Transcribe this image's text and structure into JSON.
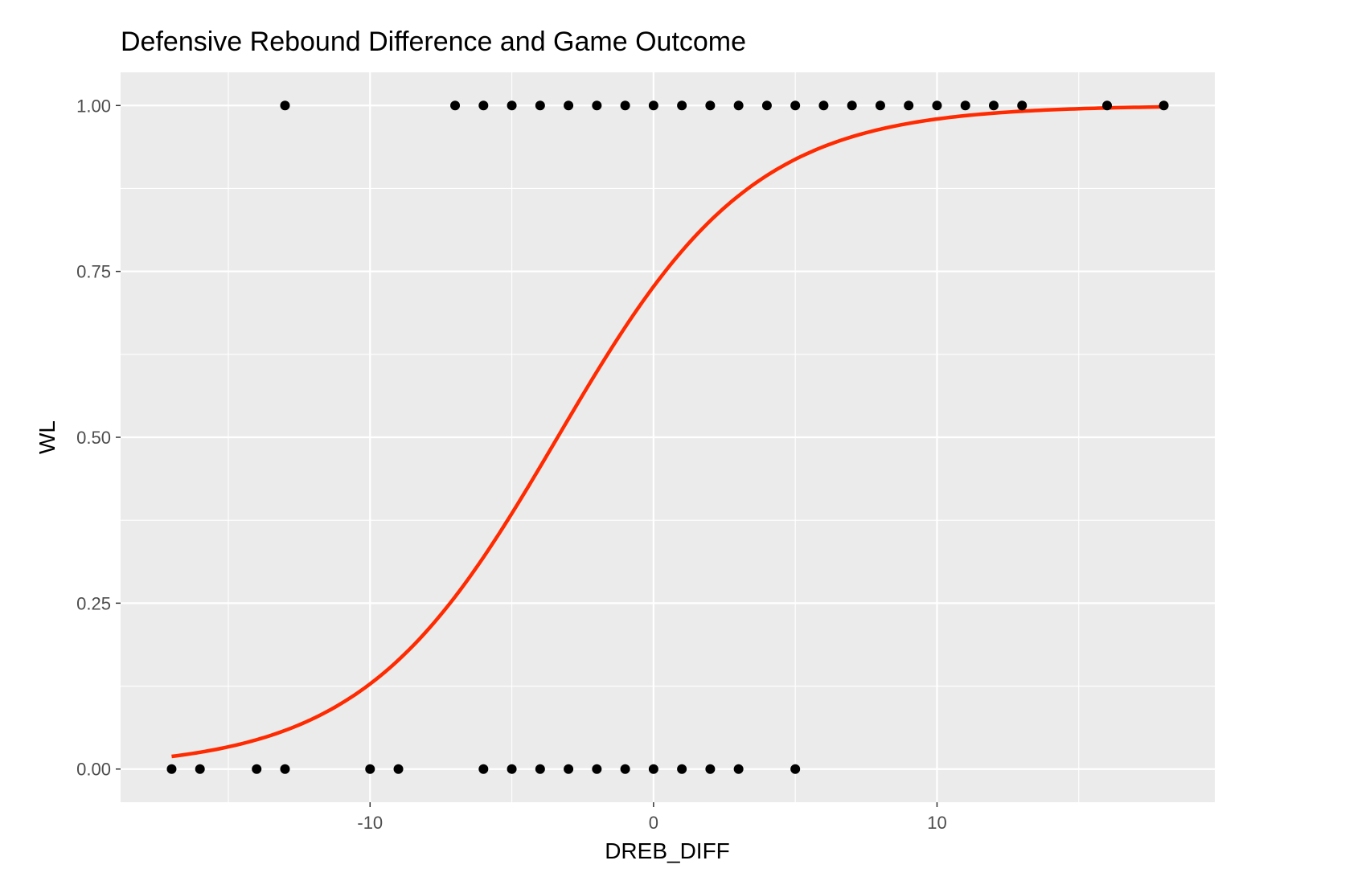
{
  "chart_data": {
    "type": "scatter",
    "title": "Defensive Rebound Difference and Game Outcome",
    "xlabel": "DREB_DIFF",
    "ylabel": "WL",
    "xlim": [
      -18.8,
      19.8
    ],
    "ylim": [
      -0.05,
      1.05
    ],
    "x_ticks": [
      -10,
      0,
      10
    ],
    "x_tick_labels": [
      "-10",
      "0",
      "10"
    ],
    "y_ticks": [
      0,
      0.25,
      0.5,
      0.75,
      1
    ],
    "y_tick_labels": [
      "0.00",
      "0.25",
      "0.50",
      "0.75",
      "1.00"
    ],
    "grid": true,
    "panel_background": "#ebebeb",
    "grid_color": "#ffffff",
    "point_color": "#000000",
    "curve_color": "#ff2a00",
    "points": {
      "y1_x": [
        -13,
        -7,
        -6,
        -5,
        -4,
        -3,
        -2,
        -1,
        0,
        1,
        2,
        3,
        4,
        5,
        6,
        7,
        8,
        9,
        10,
        11,
        12,
        13,
        16,
        18
      ],
      "y0_x": [
        -17,
        -16,
        -14,
        -13,
        -10,
        -9,
        -6,
        -5,
        -4,
        -3,
        -2,
        -1,
        0,
        1,
        2,
        3,
        5
      ]
    },
    "logistic_fit": {
      "intercept": 0.98,
      "slope": 0.2896,
      "x_range": [
        -17,
        18
      ]
    }
  }
}
